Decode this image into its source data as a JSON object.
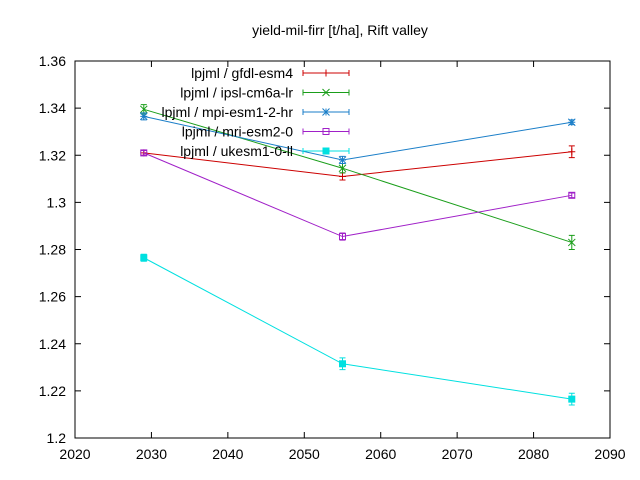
{
  "chart_data": {
    "type": "line",
    "title": "yield-mil-firr [t/ha], Rift valley",
    "xlabel": "",
    "ylabel": "",
    "xlim": [
      2020,
      2090
    ],
    "ylim": [
      1.2,
      1.36
    ],
    "xticks": [
      2020,
      2030,
      2040,
      2050,
      2060,
      2070,
      2080,
      2090
    ],
    "yticks": [
      1.2,
      1.22,
      1.24,
      1.26,
      1.28,
      1.3,
      1.32,
      1.34,
      1.36
    ],
    "ytick_labels": [
      "1.2",
      "1.22",
      "1.24",
      "1.26",
      "1.28",
      "1.3",
      "1.32",
      "1.34",
      "1.36"
    ],
    "grid": false,
    "legend_position": "top-right",
    "series": [
      {
        "name": "lpjml / gfdl-esm4",
        "color": "#cc0000",
        "marker": "plus",
        "x": [
          2029,
          2055,
          2085
        ],
        "y": [
          1.321,
          1.311,
          1.3215
        ],
        "err": [
          0.001,
          0.0015,
          0.0025
        ]
      },
      {
        "name": "lpjml / ipsl-cm6a-lr",
        "color": "#1a9e1a",
        "marker": "cross",
        "x": [
          2029,
          2055,
          2085
        ],
        "y": [
          1.3395,
          1.3145,
          1.283
        ],
        "err": [
          0.002,
          0.002,
          0.003
        ]
      },
      {
        "name": "lpjml / mpi-esm1-2-hr",
        "color": "#1a7ec8",
        "marker": "star",
        "x": [
          2029,
          2055,
          2085
        ],
        "y": [
          1.3365,
          1.318,
          1.334
        ],
        "err": [
          0.0015,
          0.0015,
          0.001
        ]
      },
      {
        "name": "lpjml / mri-esm2-0",
        "color": "#a020c8",
        "marker": "square",
        "x": [
          2029,
          2055,
          2085
        ],
        "y": [
          1.321,
          1.2855,
          1.303
        ],
        "err": [
          0.001,
          0.0015,
          0.001
        ]
      },
      {
        "name": "lpjml / ukesm1-0-ll",
        "color": "#00e0e0",
        "marker": "filled-square",
        "x": [
          2029,
          2055,
          2085
        ],
        "y": [
          1.2765,
          1.2315,
          1.2165
        ],
        "err": [
          0.0015,
          0.0025,
          0.0025
        ]
      }
    ]
  }
}
